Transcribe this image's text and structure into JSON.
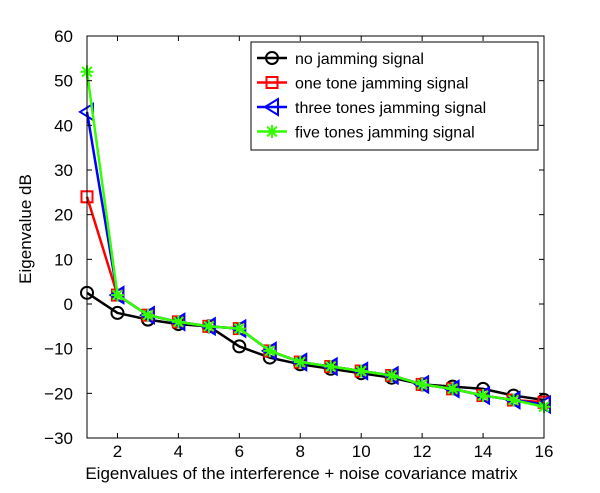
{
  "chart_data": {
    "type": "line",
    "title": "",
    "xlabel": "Eigenvalues of the interference + noise covariance matrix",
    "ylabel": "Eigenvalue dB",
    "xlim": [
      1,
      16
    ],
    "ylim": [
      -30,
      60
    ],
    "x": [
      1,
      2,
      3,
      4,
      5,
      6,
      7,
      8,
      9,
      10,
      11,
      12,
      13,
      14,
      15,
      16
    ],
    "xticks": [
      2,
      4,
      6,
      8,
      10,
      12,
      14,
      16
    ],
    "yticks": [
      -30,
      -20,
      -10,
      0,
      10,
      20,
      30,
      40,
      50,
      60
    ],
    "xtick_labels": [
      "2",
      "4",
      "6",
      "8",
      "10",
      "12",
      "14",
      "16"
    ],
    "ytick_labels": [
      "−30",
      "−20",
      "−10",
      "0",
      "10",
      "20",
      "30",
      "40",
      "50",
      "60"
    ],
    "grid": false,
    "legend_position": "top-right",
    "series": [
      {
        "name": "no jamming signal",
        "color": "#000000",
        "marker": "circle",
        "values": [
          2.5,
          -2,
          -3.5,
          -4.5,
          -5,
          -9.5,
          -12,
          -13.5,
          -14.5,
          -15.5,
          -16.5,
          -18,
          -18.5,
          -19,
          -20.5,
          -21.5
        ]
      },
      {
        "name": "one tone jamming signal",
        "color": "#ff0000",
        "marker": "square",
        "values": [
          24,
          2,
          -2.5,
          -4,
          -5,
          -5.5,
          -10.5,
          -13,
          -14,
          -15,
          -16,
          -18,
          -19,
          -20.5,
          -21.5,
          -22
        ]
      },
      {
        "name": "three tones jamming signal",
        "color": "#0000ff",
        "marker": "triangle-left",
        "values": [
          43,
          2,
          -2.5,
          -4,
          -5,
          -5.5,
          -10.5,
          -13,
          -14,
          -15,
          -16,
          -18,
          -19,
          -20.5,
          -21.5,
          -22.5
        ]
      },
      {
        "name": "five tones jamming signal",
        "color": "#33ff00",
        "marker": "asterisk",
        "values": [
          52,
          2,
          -2.5,
          -4,
          -5,
          -5.5,
          -10.5,
          -13,
          -14,
          -15,
          -16,
          -18,
          -19,
          -20.5,
          -21.5,
          -23
        ]
      }
    ]
  }
}
